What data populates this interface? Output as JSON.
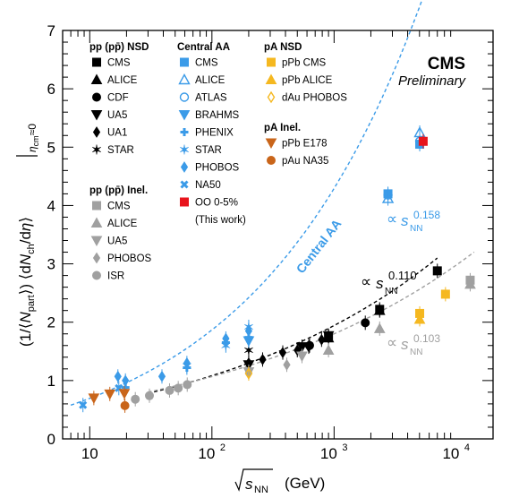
{
  "chart_data": {
    "type": "scatter",
    "xscale": "log",
    "xlim": [
      6,
      20000
    ],
    "ylim": [
      0,
      7
    ],
    "y_ticks": [
      0,
      1,
      2,
      3,
      4,
      5,
      6,
      7
    ],
    "x_tick_labels": [
      {
        "x": 10,
        "base": "10",
        "exp": ""
      },
      {
        "x": 100,
        "base": "10",
        "exp": "2"
      },
      {
        "x": 1000,
        "base": "10",
        "exp": "3"
      },
      {
        "x": 10000,
        "base": "10",
        "exp": "4"
      }
    ],
    "xlabel": {
      "main": "s",
      "sub": "NN",
      "unit": "(GeV)"
    },
    "ylabel": "(1/⟨N_part⟩) ⟨dN_ch/dη⟩ |η_cm≈0",
    "branding": {
      "experiment": "CMS",
      "status": "Preliminary"
    },
    "legend_headers": {
      "pp_nsd": "pp (pp̄) NSD",
      "pp_inel": "pp (pp̄) Inel.",
      "central_aa": "Central AA",
      "pa_nsd": "pA NSD",
      "pa_inel": "pA Inel."
    },
    "fit_annotations": {
      "central_aa_label": "Central AA",
      "aa_power": "∝ s_NN^0.158",
      "nsd_power": "∝ s_NN^0.110",
      "inel_power": "∝ s_NN^0.103",
      "aa_exp": "0.158",
      "nsd_exp": "0.110",
      "inel_exp": "0.103",
      "prop": "∝",
      "s": "s",
      "nn": "NN"
    },
    "fits": [
      {
        "name": "Central AA",
        "color": "#3b9be8",
        "a": 0.5,
        "x0": 7.5,
        "exp": 0.316,
        "xrange": [
          7,
          7000
        ]
      },
      {
        "name": "NSD",
        "color": "#000000",
        "a": 0.7,
        "x0": 30,
        "exp": 0.22,
        "xrange": [
          30,
          7000
        ]
      },
      {
        "name": "Inel",
        "color": "#a0a0a0",
        "a": 0.78,
        "x0": 40,
        "exp": 0.206,
        "xrange": [
          30,
          14000
        ]
      }
    ],
    "series": [
      {
        "name": "CMS",
        "group": "pp NSD",
        "color": "#000000",
        "marker": "square",
        "x": [
          900,
          2360,
          7000
        ],
        "y": [
          1.75,
          2.22,
          2.88
        ]
      },
      {
        "name": "ALICE",
        "group": "pp NSD",
        "color": "#000000",
        "marker": "triangle-up",
        "x": [
          900,
          2360
        ],
        "y": [
          1.73,
          2.2
        ]
      },
      {
        "name": "CDF",
        "group": "pp NSD",
        "color": "#000000",
        "marker": "circle",
        "x": [
          630,
          1800
        ],
        "y": [
          1.6,
          1.99
        ]
      },
      {
        "name": "UA5",
        "group": "pp NSD",
        "color": "#000000",
        "marker": "triangle-down",
        "x": [
          200,
          546,
          900
        ],
        "y": [
          1.27,
          1.58,
          1.77
        ]
      },
      {
        "name": "UA1",
        "group": "pp NSD",
        "color": "#000000",
        "marker": "diamond",
        "x": [
          200,
          260,
          380,
          500,
          620,
          790,
          900
        ],
        "y": [
          1.3,
          1.36,
          1.48,
          1.52,
          1.58,
          1.7,
          1.75
        ]
      },
      {
        "name": "STAR",
        "group": "pp NSD",
        "color": "#000000",
        "marker": "star",
        "x": [
          200
        ],
        "y": [
          1.52
        ]
      },
      {
        "name": "CMS",
        "group": "pp Inel.",
        "color": "#a0a0a0",
        "marker": "square",
        "x": [
          13000
        ],
        "y": [
          2.72
        ]
      },
      {
        "name": "ALICE",
        "group": "pp Inel.",
        "color": "#a0a0a0",
        "marker": "triangle-up",
        "x": [
          900,
          2360,
          13000
        ],
        "y": [
          1.52,
          1.89,
          2.65
        ]
      },
      {
        "name": "UA5",
        "group": "pp Inel.",
        "color": "#a0a0a0",
        "marker": "triangle-down",
        "x": [
          200,
          546
        ],
        "y": [
          1.15,
          1.42
        ]
      },
      {
        "name": "PHOBOS",
        "group": "pp Inel.",
        "color": "#a0a0a0",
        "marker": "diamond",
        "x": [
          200,
          410
        ],
        "y": [
          1.15,
          1.27
        ]
      },
      {
        "name": "ISR",
        "group": "pp Inel.",
        "color": "#a0a0a0",
        "marker": "circle",
        "x": [
          23.6,
          30.8,
          45,
          53,
          62.8
        ],
        "y": [
          0.68,
          0.74,
          0.83,
          0.87,
          0.93
        ]
      },
      {
        "name": "CMS",
        "group": "Central AA",
        "color": "#3b9be8",
        "marker": "square",
        "x": [
          2760,
          5020
        ],
        "y": [
          4.2,
          5.05
        ]
      },
      {
        "name": "ALICE",
        "group": "Central AA",
        "color": "#3b9be8",
        "marker": "triangle-up-open",
        "x": [
          2760,
          5020
        ],
        "y": [
          4.12,
          5.25
        ]
      },
      {
        "name": "ATLAS",
        "group": "Central AA",
        "color": "#3b9be8",
        "marker": "circle-open",
        "x": [
          2760,
          5020
        ],
        "y": [
          4.18,
          5.1
        ]
      },
      {
        "name": "BRAHMS",
        "group": "Central AA",
        "color": "#3b9be8",
        "marker": "triangle-down",
        "x": [
          200
        ],
        "y": [
          1.68
        ]
      },
      {
        "name": "PHENIX",
        "group": "Central AA",
        "color": "#3b9be8",
        "marker": "cross",
        "x": [
          19.6,
          62.4,
          130,
          200
        ],
        "y": [
          0.88,
          1.22,
          1.65,
          1.74
        ]
      },
      {
        "name": "STAR",
        "group": "Central AA",
        "color": "#3b9be8",
        "marker": "star",
        "x": [
          62.4,
          130,
          200
        ],
        "y": [
          1.25,
          1.6,
          1.92
        ]
      },
      {
        "name": "PHOBOS",
        "group": "Central AA",
        "color": "#3b9be8",
        "marker": "diamond",
        "x": [
          17,
          19.6,
          39,
          62.4,
          130,
          200
        ],
        "y": [
          1.07,
          1.0,
          1.07,
          1.3,
          1.72,
          1.85
        ]
      },
      {
        "name": "NA50",
        "group": "Central AA",
        "color": "#3b9be8",
        "marker": "x-cross",
        "x": [
          8.8,
          17.3
        ],
        "y": [
          0.58,
          0.87
        ]
      },
      {
        "name": "OO 0-5%",
        "group": "Central AA",
        "color": "#e8141c",
        "marker": "square",
        "x": [
          5360
        ],
        "y": [
          5.1
        ]
      },
      {
        "name": "pPb CMS",
        "group": "pA NSD",
        "color": "#f5b820",
        "marker": "square",
        "x": [
          5020,
          8160
        ],
        "y": [
          2.15,
          2.48
        ]
      },
      {
        "name": "pPb ALICE",
        "group": "pA NSD",
        "color": "#f5b820",
        "marker": "triangle-up",
        "x": [
          5020
        ],
        "y": [
          2.05
        ]
      },
      {
        "name": "dAu PHOBOS",
        "group": "pA NSD",
        "color": "#f5b820",
        "marker": "diamond-open",
        "x": [
          200
        ],
        "y": [
          1.12
        ]
      },
      {
        "name": "pPb E178",
        "group": "pA Inel.",
        "color": "#c9651a",
        "marker": "triangle-down",
        "x": [
          10.8,
          14.6,
          19.2
        ],
        "y": [
          0.7,
          0.77,
          0.78
        ]
      },
      {
        "name": "pAu NA35",
        "group": "pA Inel.",
        "color": "#c9651a",
        "marker": "circle",
        "x": [
          19.4
        ],
        "y": [
          0.57
        ]
      }
    ]
  },
  "legend_columns": [
    {
      "header_key": "pp_nsd",
      "entries": [
        {
          "label": "CMS",
          "marker": "square",
          "color": "#000000"
        },
        {
          "label": "ALICE",
          "marker": "triangle-up",
          "color": "#000000"
        },
        {
          "label": "CDF",
          "marker": "circle",
          "color": "#000000"
        },
        {
          "label": "UA5",
          "marker": "triangle-down",
          "color": "#000000"
        },
        {
          "label": "UA1",
          "marker": "diamond",
          "color": "#000000"
        },
        {
          "label": "STAR",
          "marker": "star",
          "color": "#000000"
        }
      ]
    },
    {
      "header_key": "pp_inel",
      "entries": [
        {
          "label": "CMS",
          "marker": "square",
          "color": "#a0a0a0"
        },
        {
          "label": "ALICE",
          "marker": "triangle-up",
          "color": "#a0a0a0"
        },
        {
          "label": "UA5",
          "marker": "triangle-down",
          "color": "#a0a0a0"
        },
        {
          "label": "PHOBOS",
          "marker": "diamond",
          "color": "#a0a0a0"
        },
        {
          "label": "ISR",
          "marker": "circle",
          "color": "#a0a0a0"
        }
      ]
    },
    {
      "header_key": "central_aa",
      "entries": [
        {
          "label": "CMS",
          "marker": "square",
          "color": "#3b9be8"
        },
        {
          "label": "ALICE",
          "marker": "triangle-up-open",
          "color": "#3b9be8"
        },
        {
          "label": "ATLAS",
          "marker": "circle-open",
          "color": "#3b9be8"
        },
        {
          "label": "BRAHMS",
          "marker": "triangle-down",
          "color": "#3b9be8"
        },
        {
          "label": "PHENIX",
          "marker": "cross",
          "color": "#3b9be8"
        },
        {
          "label": "STAR",
          "marker": "star",
          "color": "#3b9be8"
        },
        {
          "label": "PHOBOS",
          "marker": "diamond",
          "color": "#3b9be8"
        },
        {
          "label": "NA50",
          "marker": "x-cross",
          "color": "#3b9be8"
        },
        {
          "label": "OO 0-5%",
          "marker": "square",
          "color": "#e8141c"
        },
        {
          "label": "(This work)",
          "marker": "",
          "color": ""
        }
      ]
    },
    {
      "header_key": "pa_nsd",
      "entries": [
        {
          "label": "pPb CMS",
          "marker": "square",
          "color": "#f5b820"
        },
        {
          "label": "pPb ALICE",
          "marker": "triangle-up",
          "color": "#f5b820"
        },
        {
          "label": "dAu PHOBOS",
          "marker": "diamond-open",
          "color": "#f5b820"
        }
      ]
    },
    {
      "header_key": "pa_inel",
      "entries": [
        {
          "label": "pPb E178",
          "marker": "triangle-down",
          "color": "#c9651a"
        },
        {
          "label": "pAu NA35",
          "marker": "circle",
          "color": "#c9651a"
        }
      ]
    }
  ]
}
